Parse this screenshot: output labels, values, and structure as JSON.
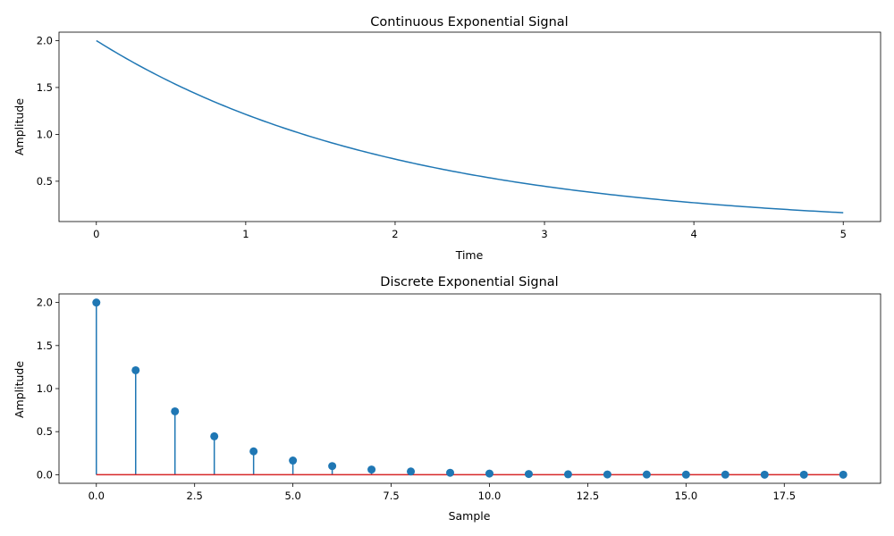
{
  "chart_data": [
    {
      "type": "line",
      "title": "Continuous Exponential Signal",
      "xlabel": "Time",
      "ylabel": "Amplitude",
      "xlim": [
        -0.25,
        5.25
      ],
      "ylim": [
        0.07,
        2.09
      ],
      "xticks": [
        "0",
        "1",
        "2",
        "3",
        "4",
        "5"
      ],
      "yticks": [
        "0.5",
        "1.0",
        "1.5",
        "2.0"
      ],
      "color": "#1f77b4",
      "function": "2*exp(-0.5*t)",
      "x": [
        0,
        0.25,
        0.5,
        0.75,
        1,
        1.25,
        1.5,
        1.75,
        2,
        2.25,
        2.5,
        2.75,
        3,
        3.25,
        3.5,
        3.75,
        4,
        4.25,
        4.5,
        4.75,
        5
      ],
      "y": [
        2.0,
        1.765,
        1.558,
        1.375,
        1.213,
        1.071,
        0.945,
        0.834,
        0.736,
        0.649,
        0.573,
        0.506,
        0.446,
        0.394,
        0.348,
        0.307,
        0.271,
        0.239,
        0.211,
        0.186,
        0.164
      ]
    },
    {
      "type": "stem",
      "title": "Discrete Exponential Signal",
      "xlabel": "Sample",
      "ylabel": "Amplitude",
      "xlim": [
        -0.95,
        19.95
      ],
      "ylim": [
        -0.1,
        2.1
      ],
      "xticks": [
        "0.0",
        "2.5",
        "5.0",
        "7.5",
        "10.0",
        "12.5",
        "15.0",
        "17.5"
      ],
      "yticks": [
        "0.0",
        "0.5",
        "1.0",
        "1.5",
        "2.0"
      ],
      "color": "#1f77b4",
      "baseline_color": "#d62728",
      "x": [
        0,
        1,
        2,
        3,
        4,
        5,
        6,
        7,
        8,
        9,
        10,
        11,
        12,
        13,
        14,
        15,
        16,
        17,
        18,
        19
      ],
      "y": [
        2.0,
        1.213,
        0.736,
        0.446,
        0.271,
        0.164,
        0.1,
        0.06,
        0.037,
        0.022,
        0.013,
        0.008,
        0.005,
        0.003,
        0.002,
        0.001,
        0.001,
        0.0,
        0.0,
        0.0
      ]
    }
  ]
}
